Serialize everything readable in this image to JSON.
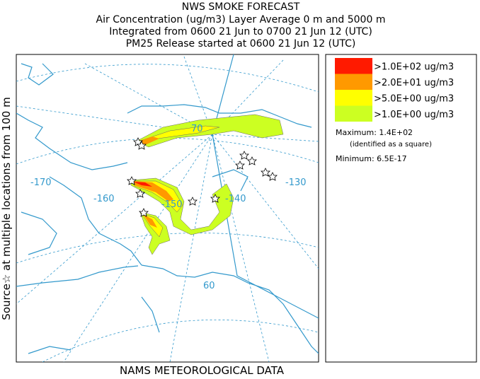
{
  "header": {
    "lines": [
      "NWS SMOKE FORECAST",
      "Air Concentration (ug/m3) Layer Average    0 m and  5000 m",
      "Integrated from 0600 21 Jun to 0700 21 Jun 12 (UTC)",
      "PM25 Release started at 0600 21 Jun 12 (UTC)"
    ]
  },
  "side_label": "Source☆ at multiple locations   from   100 m",
  "footer": "NAMS METEOROLOGICAL DATA",
  "legend": {
    "items": [
      {
        "label": ">1.0E+02 ug/m3",
        "color": "#ff1a00"
      },
      {
        "label": ">2.0E+01 ug/m3",
        "color": "#ff9900"
      },
      {
        "label": ">5.0E+00 ug/m3",
        "color": "#ffff00"
      },
      {
        "label": ">1.0E+00 ug/m3",
        "color": "#ccff22"
      }
    ],
    "maximum": "Maximum: 1.4E+02",
    "max_note": "(identified as a square)",
    "minimum": "Minimum: 6.5E-17"
  },
  "map": {
    "labels": [
      "-170",
      "-160",
      "-150",
      "-140",
      "-130",
      "70",
      "60"
    ]
  }
}
